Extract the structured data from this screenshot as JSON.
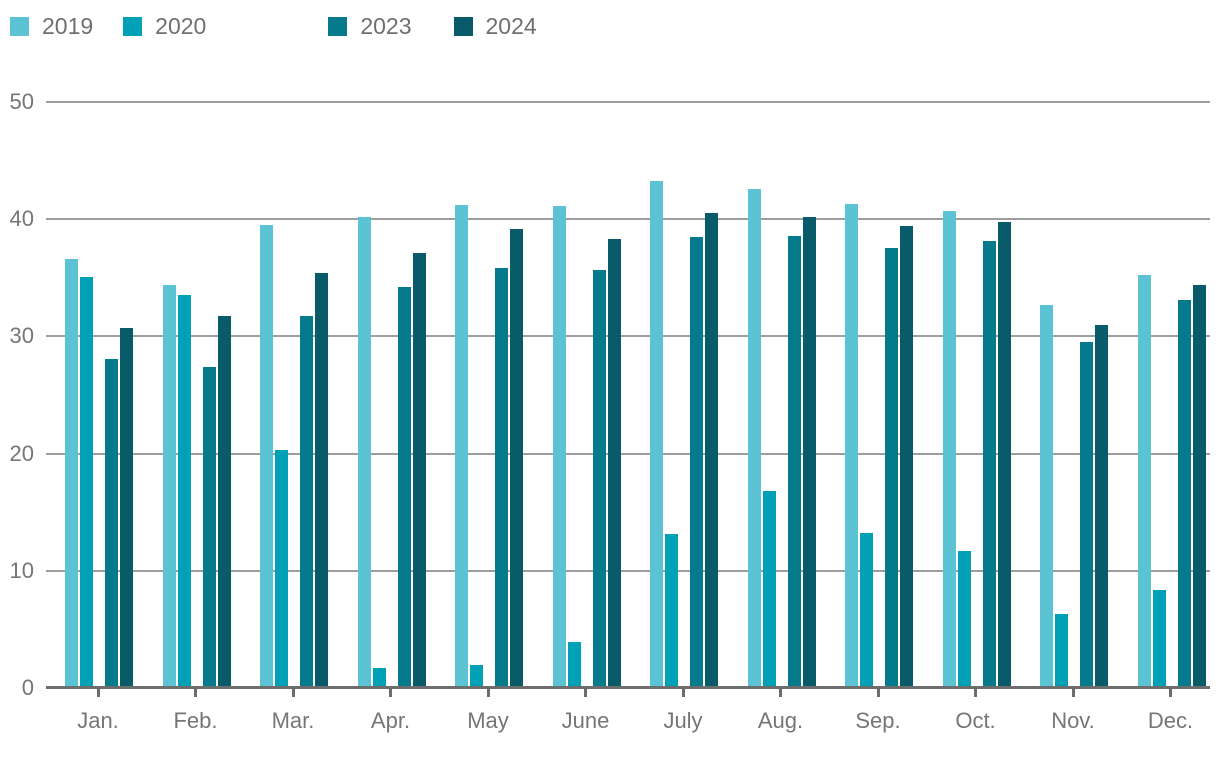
{
  "chart_data": {
    "type": "bar",
    "title": "",
    "xlabel": "",
    "ylabel": "",
    "ylim": [
      0,
      50
    ],
    "yticks": [
      0,
      10,
      20,
      30,
      40,
      50
    ],
    "grid": true,
    "legend_position": "top-left",
    "categories": [
      "Jan.",
      "Feb.",
      "Mar.",
      "Apr.",
      "May",
      "June",
      "July",
      "Aug.",
      "Sep.",
      "Oct.",
      "Nov.",
      "Dec."
    ],
    "series": [
      {
        "name": "2019",
        "color": "#5bc3d4",
        "values": [
          36.6,
          34.4,
          39.5,
          40.2,
          41.2,
          41.1,
          43.3,
          42.6,
          41.3,
          40.7,
          32.7,
          35.2
        ]
      },
      {
        "name": "2020",
        "color": "#00a1b7",
        "values": [
          35.1,
          33.5,
          20.3,
          1.7,
          2.0,
          3.9,
          13.1,
          16.8,
          13.2,
          11.7,
          6.3,
          8.4
        ]
      },
      {
        "name": "2023",
        "color": "#067a8d",
        "values": [
          28.1,
          27.4,
          31.7,
          34.2,
          35.8,
          35.7,
          38.5,
          38.6,
          37.5,
          38.1,
          29.5,
          33.1
        ]
      },
      {
        "name": "2024",
        "color": "#095b69",
        "values": [
          30.7,
          31.7,
          35.4,
          37.1,
          39.2,
          38.3,
          40.5,
          40.2,
          39.4,
          39.8,
          31.0,
          34.4
        ]
      }
    ],
    "colors": {
      "grid": "#9e9e9e",
      "axis": "#6d6d6d",
      "tick_text": "#767676",
      "legend_text": "#6f6f6f"
    }
  }
}
